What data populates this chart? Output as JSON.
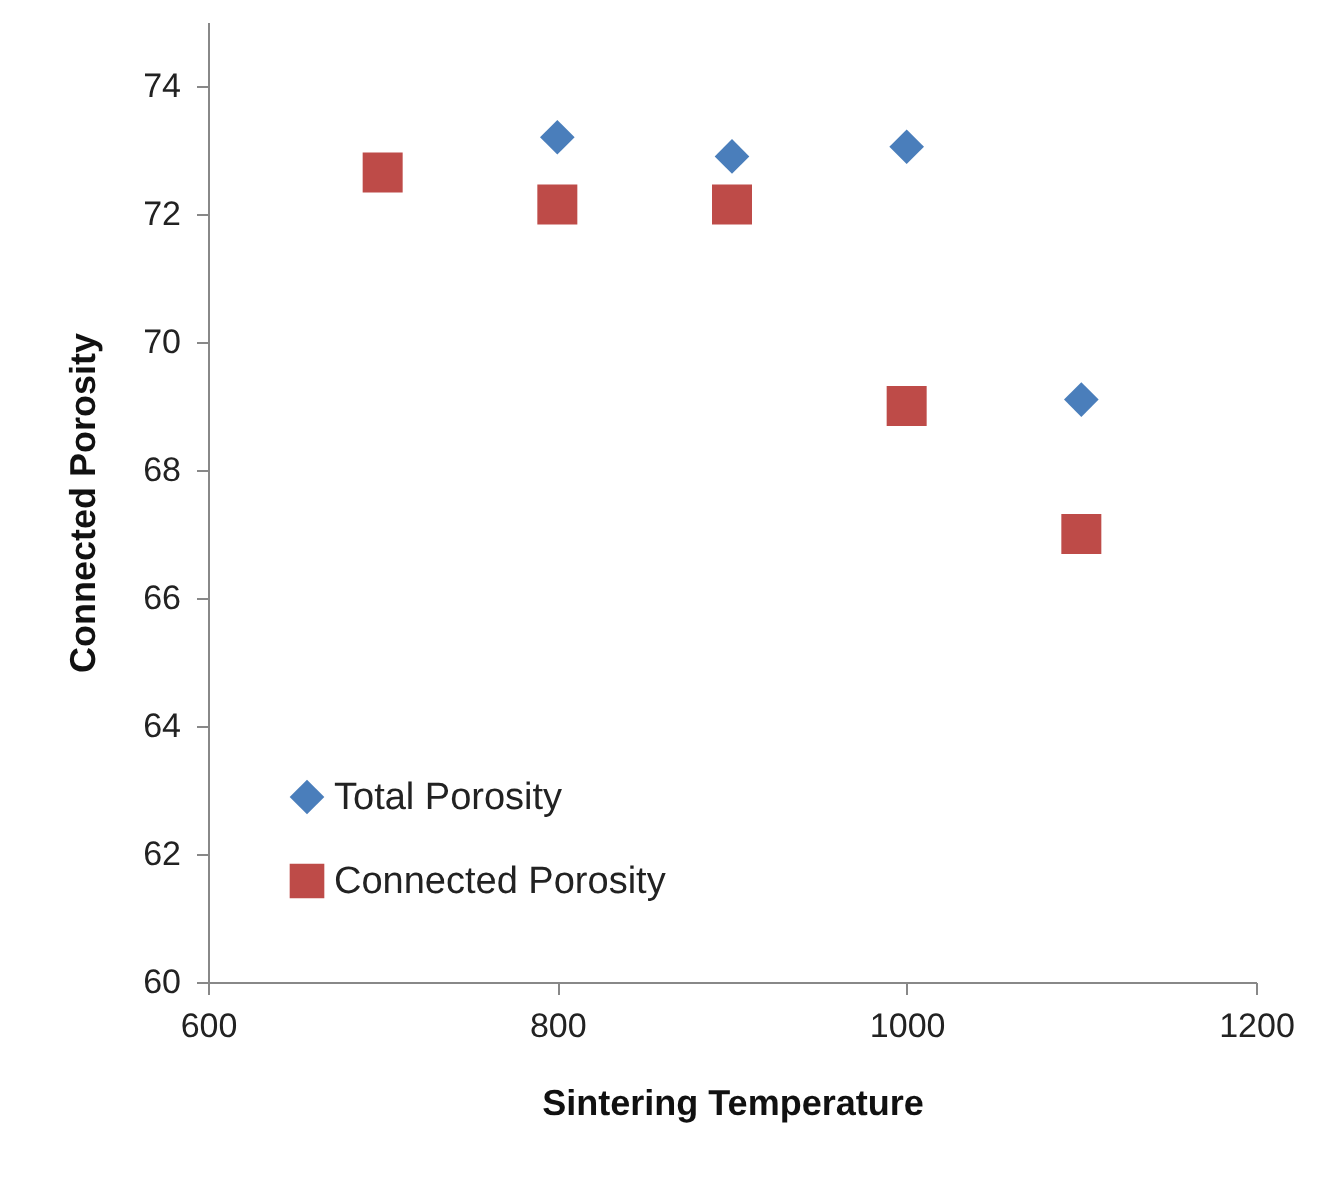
{
  "chart_data": {
    "type": "scatter",
    "xlabel": "Sintering Temperature",
    "ylabel": "Connected Porosity",
    "xlim": [
      600,
      1200
    ],
    "xticks": [
      600,
      800,
      1000,
      1200
    ],
    "ylim": [
      60,
      75
    ],
    "yticks": [
      60,
      62,
      64,
      66,
      68,
      70,
      72,
      74
    ],
    "grid": false,
    "legend": "bottom left",
    "series": [
      {
        "name": "Total Porosity",
        "color": "#4a7ebb",
        "marker": "diamond",
        "x": [
          800,
          900,
          1000,
          1100
        ],
        "values": [
          73.2,
          72.9,
          73.05,
          69.1
        ]
      },
      {
        "name": "Connected Porosity",
        "color": "#be4b48",
        "marker": "square",
        "x": [
          700,
          800,
          900,
          1000,
          1100
        ],
        "values": [
          72.65,
          72.15,
          72.15,
          69.0,
          67.0
        ]
      }
    ]
  }
}
